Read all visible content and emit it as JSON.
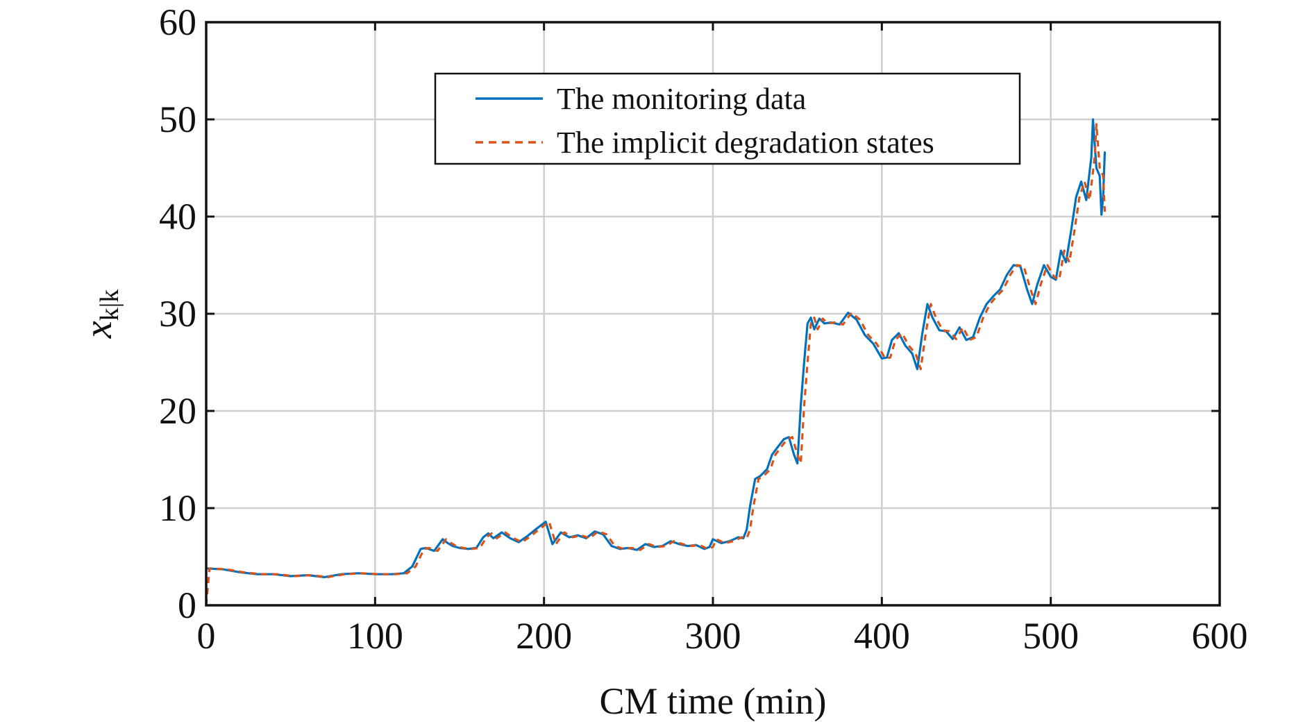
{
  "chart_data": {
    "type": "line",
    "title": "",
    "xlabel": "CM time (min)",
    "ylabel_main": "x",
    "ylabel_sub": "k|k",
    "xlim": [
      0,
      600
    ],
    "ylim": [
      0,
      60
    ],
    "xticks": [
      0,
      100,
      200,
      300,
      400,
      500,
      600
    ],
    "yticks": [
      0,
      10,
      20,
      30,
      40,
      50,
      60
    ],
    "xtick_labels": [
      "0",
      "100",
      "200",
      "300",
      "400",
      "500",
      "600"
    ],
    "ytick_labels": [
      "0",
      "10",
      "20",
      "30",
      "40",
      "50",
      "60"
    ],
    "grid": true,
    "legend_position": "top-center",
    "series": [
      {
        "name": "The monitoring data",
        "color": "#0072BD",
        "style": "solid",
        "x": [
          0,
          10,
          20,
          30,
          40,
          50,
          60,
          70,
          80,
          90,
          100,
          110,
          117,
          122,
          127,
          130,
          135,
          140,
          143,
          146,
          150,
          155,
          160,
          164,
          167,
          170,
          175,
          180,
          185,
          190,
          195,
          198,
          201,
          205,
          210,
          215,
          220,
          225,
          230,
          235,
          240,
          245,
          250,
          255,
          260,
          265,
          270,
          275,
          280,
          285,
          290,
          295,
          298,
          300,
          305,
          310,
          315,
          318,
          320,
          322,
          325,
          328,
          332,
          335,
          338,
          342,
          345,
          348,
          350,
          352,
          354,
          356,
          358,
          360,
          363,
          366,
          370,
          375,
          380,
          385,
          390,
          395,
          400,
          403,
          406,
          410,
          414,
          418,
          421,
          424,
          427,
          430,
          434,
          438,
          442,
          446,
          450,
          454,
          458,
          462,
          466,
          470,
          474,
          478,
          482,
          486,
          489,
          492,
          496,
          500,
          503,
          506,
          509,
          512,
          515,
          518,
          521,
          524,
          525,
          527,
          529,
          530,
          531,
          532
        ],
        "y": [
          3.8,
          3.7,
          3.4,
          3.2,
          3.2,
          3.0,
          3.1,
          2.9,
          3.2,
          3.3,
          3.2,
          3.2,
          3.3,
          4.0,
          5.8,
          5.9,
          5.6,
          6.8,
          6.4,
          6.1,
          5.9,
          5.8,
          5.9,
          7.0,
          7.4,
          6.9,
          7.5,
          6.9,
          6.5,
          7.1,
          7.8,
          8.2,
          8.6,
          6.3,
          7.5,
          7.0,
          7.2,
          6.9,
          7.6,
          7.3,
          6.1,
          5.8,
          5.9,
          5.7,
          6.3,
          6.0,
          6.1,
          6.6,
          6.3,
          6.1,
          6.2,
          5.8,
          6.0,
          6.8,
          6.4,
          6.6,
          7.0,
          6.9,
          7.8,
          10.2,
          13.0,
          13.3,
          14.0,
          15.5,
          16.2,
          17.1,
          17.3,
          15.5,
          14.6,
          20.5,
          25.0,
          29.0,
          29.6,
          28.4,
          29.5,
          29.0,
          29.1,
          28.9,
          30.1,
          29.4,
          27.8,
          26.9,
          25.4,
          25.5,
          27.3,
          28.0,
          26.7,
          25.9,
          24.3,
          28.0,
          31.0,
          29.6,
          28.3,
          28.2,
          27.4,
          28.6,
          27.3,
          27.6,
          29.6,
          31.0,
          31.8,
          32.5,
          34.0,
          35.0,
          34.9,
          32.5,
          31.0,
          33.0,
          35.0,
          33.8,
          33.5,
          36.5,
          35.3,
          38.5,
          42.0,
          43.6,
          41.7,
          46.1,
          50.0,
          45.0,
          44.2,
          40.2,
          42.0,
          46.6
        ]
      },
      {
        "name": "The implicit degradation states",
        "color": "#D95319",
        "style": "dashed",
        "x": [
          0,
          2,
          12,
          22,
          32,
          42,
          52,
          62,
          72,
          82,
          92,
          102,
          112,
          119,
          124,
          129,
          132,
          137,
          142,
          145,
          148,
          152,
          157,
          162,
          166,
          169,
          172,
          177,
          182,
          187,
          192,
          197,
          200,
          203,
          207,
          212,
          217,
          222,
          227,
          232,
          237,
          242,
          247,
          252,
          257,
          262,
          267,
          272,
          277,
          282,
          287,
          292,
          297,
          300,
          302,
          307,
          312,
          317,
          320,
          322,
          324,
          327,
          330,
          334,
          337,
          340,
          344,
          347,
          350,
          352,
          354,
          356,
          358,
          360,
          362,
          365,
          368,
          372,
          377,
          382,
          387,
          392,
          397,
          402,
          405,
          408,
          412,
          416,
          420,
          423,
          426,
          429,
          432,
          436,
          440,
          444,
          448,
          452,
          456,
          460,
          464,
          468,
          472,
          476,
          480,
          484,
          488,
          491,
          494,
          498,
          502,
          505,
          508,
          511,
          514,
          517,
          520,
          523,
          526,
          527,
          529,
          531,
          532
        ],
        "y": [
          0.0,
          3.8,
          3.7,
          3.4,
          3.2,
          3.2,
          3.0,
          3.1,
          2.9,
          3.2,
          3.3,
          3.2,
          3.2,
          3.3,
          4.0,
          5.8,
          5.9,
          5.6,
          6.8,
          6.4,
          6.1,
          5.9,
          5.8,
          5.9,
          7.0,
          7.4,
          6.9,
          7.5,
          6.9,
          6.5,
          7.1,
          7.8,
          8.2,
          8.6,
          6.3,
          7.5,
          7.0,
          7.2,
          6.9,
          7.6,
          7.3,
          6.1,
          5.8,
          5.9,
          5.7,
          6.3,
          6.0,
          6.1,
          6.6,
          6.3,
          6.1,
          6.2,
          5.8,
          6.0,
          6.8,
          6.4,
          6.6,
          7.0,
          6.9,
          7.8,
          10.2,
          13.0,
          13.3,
          14.0,
          15.5,
          16.2,
          17.1,
          17.3,
          15.5,
          14.6,
          20.5,
          25.0,
          29.0,
          29.6,
          28.4,
          29.5,
          29.0,
          29.1,
          28.9,
          30.1,
          29.4,
          27.8,
          26.9,
          25.4,
          25.5,
          27.3,
          28.0,
          26.7,
          25.9,
          24.3,
          28.0,
          31.0,
          29.6,
          28.3,
          28.2,
          27.4,
          28.6,
          27.3,
          27.6,
          29.6,
          31.0,
          31.8,
          32.5,
          34.0,
          35.0,
          34.9,
          32.5,
          31.0,
          33.0,
          35.0,
          33.8,
          33.5,
          36.5,
          35.3,
          38.5,
          42.0,
          43.6,
          41.7,
          46.1,
          49.5,
          45.0,
          44.2,
          40.5
        ]
      }
    ]
  }
}
